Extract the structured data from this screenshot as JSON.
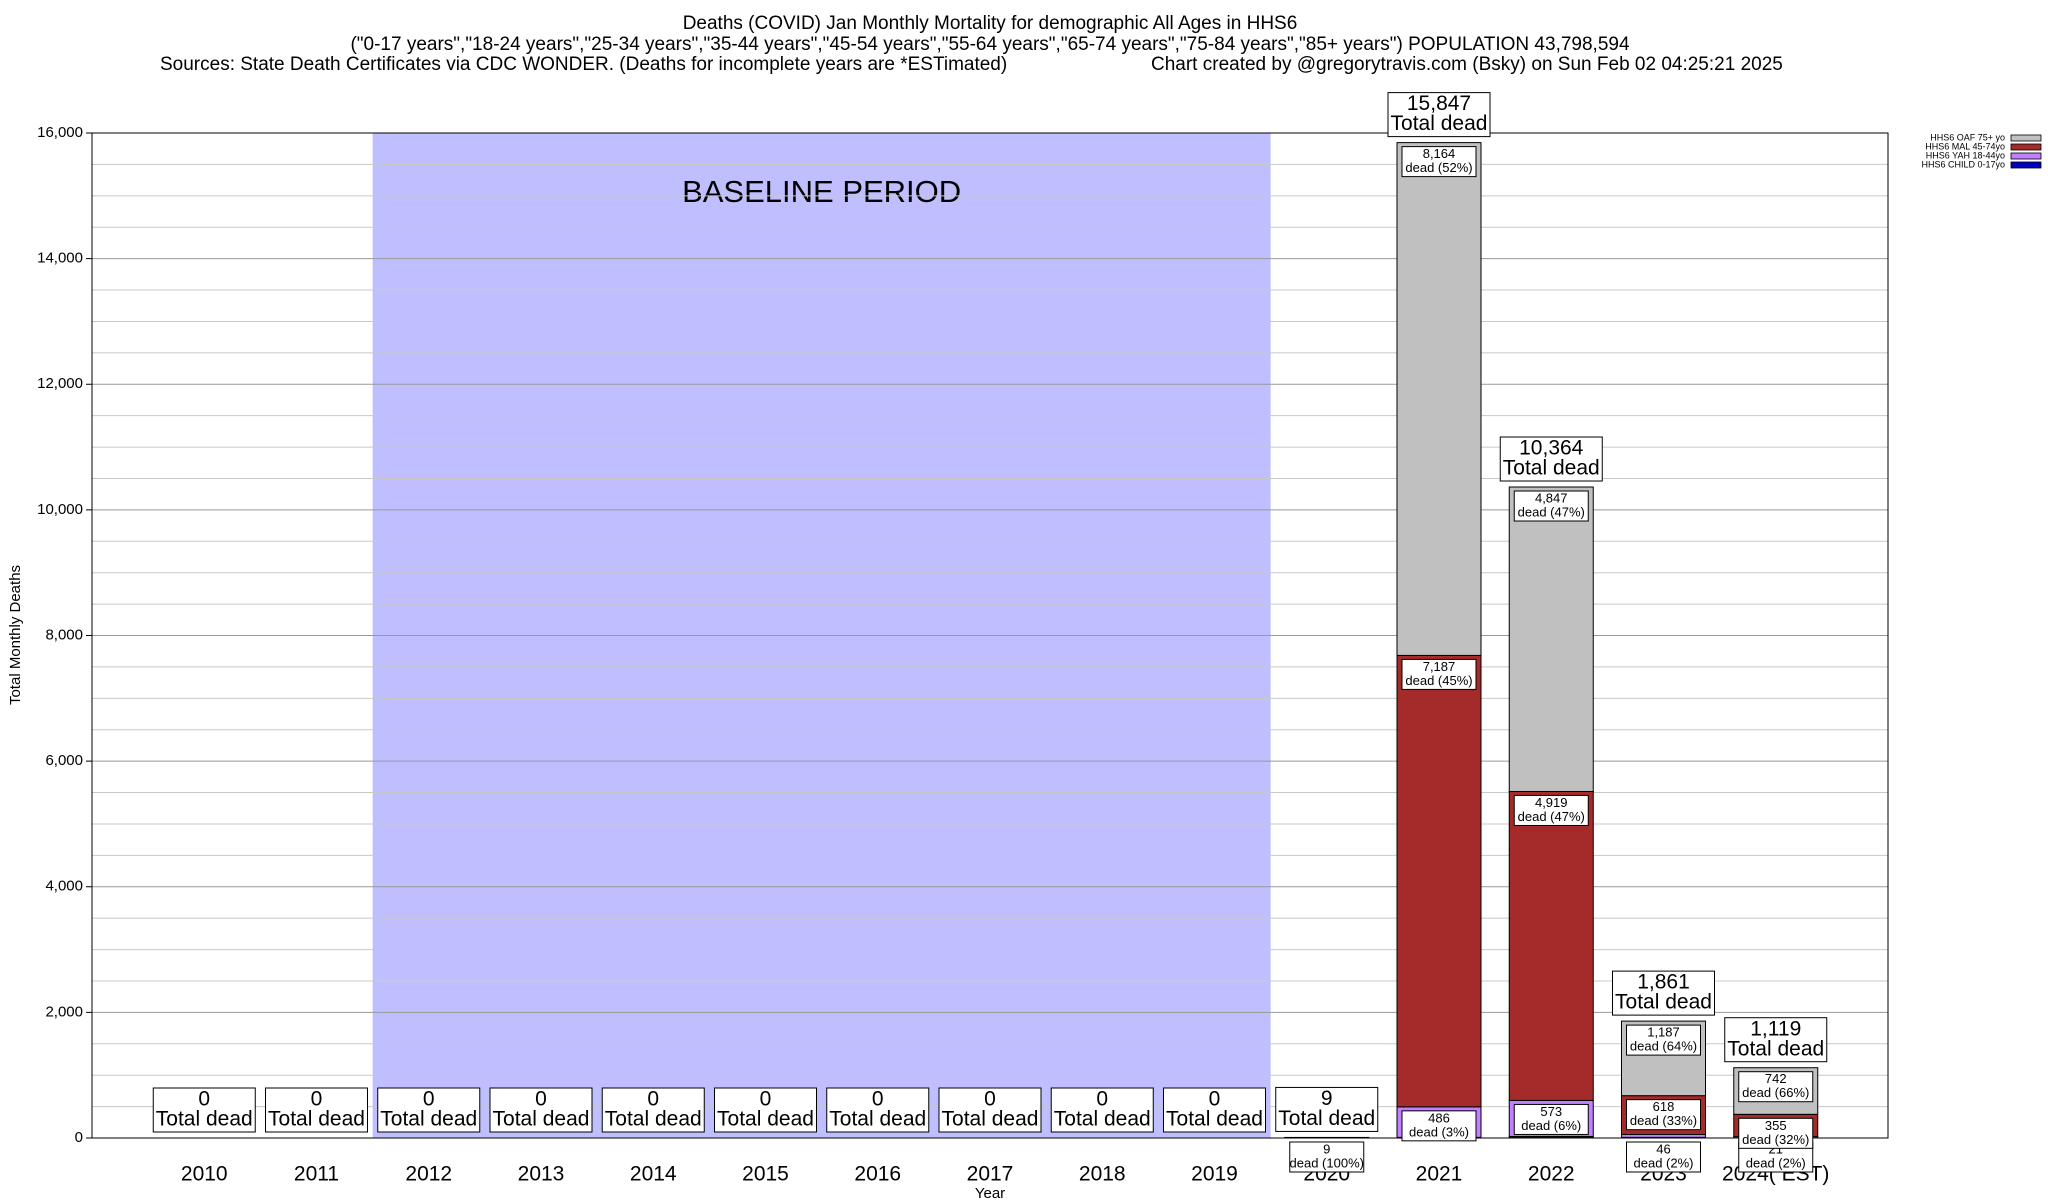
{
  "chart_data": {
    "type": "stacked_bar",
    "title": "Deaths (COVID) Jan Monthly Mortality for demographic All Ages in HHS6",
    "subtitle": "(\"0-17 years\",\"18-24 years\",\"25-34 years\",\"35-44 years\",\"45-54 years\",\"55-64 years\",\"65-74 years\",\"75-84 years\",\"85+ years\") POPULATION 43,798,594",
    "source": "Sources: State Death Certificates via CDC WONDER. (Deaths for incomplete years are *ESTimated)",
    "credit": "Chart created by @gregorytravis.com (Bsky) on Sun Feb 02 04:25:21 2025",
    "x_label": "Year",
    "y_label": "Total Monthly Deaths",
    "categories": [
      "2010",
      "2011",
      "2012",
      "2013",
      "2014",
      "2015",
      "2016",
      "2017",
      "2018",
      "2019",
      "2020",
      "2021",
      "2022",
      "2023",
      "2024( EST)"
    ],
    "series": [
      {
        "name": "HHS6 CHILD 0-17yo",
        "color": "#0000c0",
        "values": [
          0,
          0,
          0,
          0,
          0,
          0,
          0,
          0,
          0,
          0,
          0,
          10,
          25,
          10,
          1
        ],
        "value_labels": [
          null,
          null,
          null,
          null,
          null,
          null,
          null,
          null,
          null,
          null,
          null,
          null,
          null,
          null,
          null
        ],
        "share_labels": [
          null,
          null,
          null,
          null,
          null,
          null,
          null,
          null,
          null,
          null,
          null,
          null,
          null,
          null,
          null
        ]
      },
      {
        "name": "HHS6 YAH 18-44yo",
        "color": "#c080ff",
        "values": [
          0,
          0,
          0,
          0,
          0,
          0,
          0,
          0,
          0,
          0,
          9,
          486,
          573,
          46,
          21
        ],
        "value_labels": [
          null,
          null,
          null,
          null,
          null,
          null,
          null,
          null,
          null,
          null,
          "9",
          "486",
          "573",
          "46",
          "21"
        ],
        "share_labels": [
          null,
          null,
          null,
          null,
          null,
          null,
          null,
          null,
          null,
          null,
          "dead (100%)",
          "dead (3%)",
          "dead (6%)",
          "dead (2%)",
          "dead (2%)"
        ]
      },
      {
        "name": "HHS6 MAL 45-74yo",
        "color": "#a52a2a",
        "values": [
          0,
          0,
          0,
          0,
          0,
          0,
          0,
          0,
          0,
          0,
          0,
          7187,
          4919,
          618,
          355
        ],
        "value_labels": [
          null,
          null,
          null,
          null,
          null,
          null,
          null,
          null,
          null,
          null,
          null,
          "7,187",
          "4,919",
          "618",
          "355"
        ],
        "share_labels": [
          null,
          null,
          null,
          null,
          null,
          null,
          null,
          null,
          null,
          null,
          null,
          "dead (45%)",
          "dead (47%)",
          "dead (33%)",
          "dead (32%)"
        ]
      },
      {
        "name": "HHS6 OAF 75+ yo",
        "color": "#c0c0c0",
        "values": [
          0,
          0,
          0,
          0,
          0,
          0,
          0,
          0,
          0,
          0,
          0,
          8164,
          4847,
          1187,
          742
        ],
        "value_labels": [
          null,
          null,
          null,
          null,
          null,
          null,
          null,
          null,
          null,
          null,
          null,
          "8,164",
          "4,847",
          "1,187",
          "742"
        ],
        "share_labels": [
          null,
          null,
          null,
          null,
          null,
          null,
          null,
          null,
          null,
          null,
          null,
          "dead (52%)",
          "dead (47%)",
          "dead (64%)",
          "dead (66%)"
        ]
      }
    ],
    "totals": [
      0,
      0,
      0,
      0,
      0,
      0,
      0,
      0,
      0,
      0,
      9,
      15847,
      10364,
      1861,
      1119
    ],
    "total_labels": [
      "0",
      "0",
      "0",
      "0",
      "0",
      "0",
      "0",
      "0",
      "0",
      "0",
      "9",
      "15,847",
      "10,364",
      "1,861",
      "1,119"
    ],
    "total_text": "Total dead",
    "baseline": {
      "label": "BASELINE PERIOD",
      "from": "2012",
      "to": "2019",
      "color": "#bfbfff"
    },
    "ylim": [
      0,
      16000
    ],
    "yticks": [
      0,
      {
        "value": 2000,
        "label": "2,000"
      },
      {
        "value": 4000,
        "label": "4,000"
      },
      {
        "value": 6000,
        "label": "6,000"
      },
      {
        "value": 8000,
        "label": "8,000"
      },
      {
        "value": 10000,
        "label": "10,000"
      },
      {
        "value": 12000,
        "label": "12,000"
      },
      {
        "value": 14000,
        "label": "14,000"
      },
      {
        "value": 16000,
        "label": "16,000"
      }
    ],
    "minor_yticks": [
      500,
      1000,
      1500,
      2500,
      3000,
      3500,
      4500,
      5000,
      5500,
      6500,
      7000,
      7500,
      8500,
      9000,
      9500,
      10500,
      11000,
      11500,
      12500,
      13000,
      13500,
      14500,
      15000,
      15500
    ],
    "grid": true,
    "legend": "upper right"
  }
}
